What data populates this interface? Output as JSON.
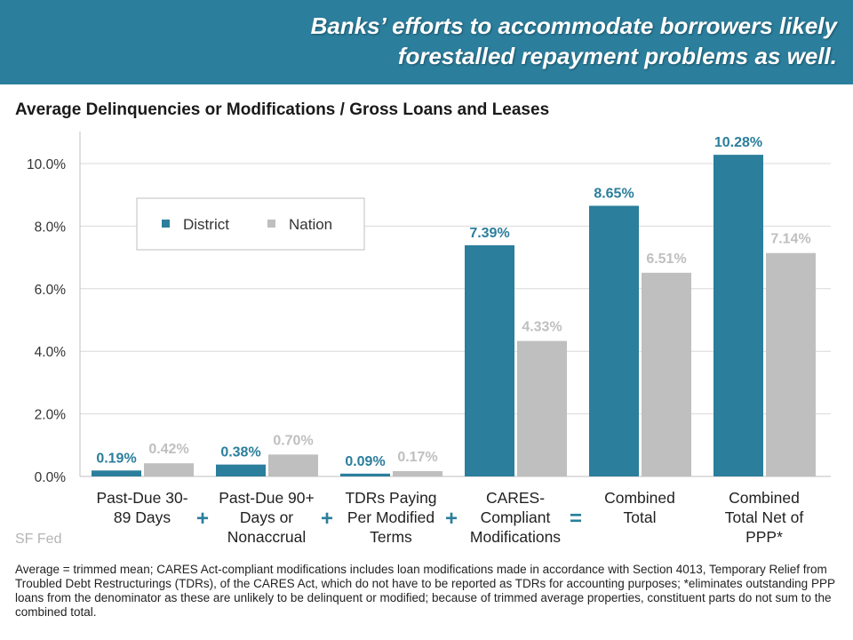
{
  "banner": {
    "line1": "Banks’ efforts to accommodate borrowers likely",
    "line2": "forestalled repayment problems as well."
  },
  "source_label": "SF Fed",
  "footnote": "Average = trimmed mean; CARES Act-compliant modifications includes loan modifications made in accordance with Section 4013, Temporary Relief from Troubled Debt Restructurings (TDRs), of the CARES Act, which do not have to be reported as TDRs for accounting purposes; *eliminates outstanding PPP loans from the denominator as these are unlikely to be delinquent or modified; because of trimmed average properties, constituent parts do not sum to the combined total.",
  "colors": {
    "district": "#2b7e9c",
    "nation": "#bfbfbf",
    "operator": "#2b7e9c"
  },
  "chart_data": {
    "type": "bar",
    "title": "Average Delinquencies  or Modifications / Gross Loans and Leases",
    "categories": [
      [
        "Past-Due 30-",
        "89 Days"
      ],
      [
        "Past-Due 90+",
        "Days or",
        "Nonaccrual"
      ],
      [
        "TDRs Paying",
        "Per Modified",
        "Terms"
      ],
      [
        "CARES-",
        "Compliant",
        "Modifications"
      ],
      [
        "Combined",
        "Total"
      ],
      [
        "Combined",
        "Total Net of",
        "PPP*"
      ]
    ],
    "operators": [
      "+",
      "+",
      "+",
      "="
    ],
    "series": [
      {
        "name": "District",
        "values": [
          0.19,
          0.38,
          0.09,
          7.39,
          8.65,
          10.28
        ],
        "labels": [
          "0.19%",
          "0.38%",
          "0.09%",
          "7.39%",
          "8.65%",
          "10.28%"
        ]
      },
      {
        "name": "Nation",
        "values": [
          0.42,
          0.7,
          0.17,
          4.33,
          6.51,
          7.14
        ],
        "labels": [
          "0.42%",
          "0.70%",
          "0.17%",
          "4.33%",
          "6.51%",
          "7.14%"
        ]
      }
    ],
    "yticks": [
      0,
      2,
      4,
      6,
      8,
      10
    ],
    "ytick_labels": [
      "0.0%",
      "2.0%",
      "4.0%",
      "6.0%",
      "8.0%",
      "10.0%"
    ],
    "ylim": [
      0,
      11
    ],
    "grid": true,
    "legend_position": "upper-left"
  }
}
